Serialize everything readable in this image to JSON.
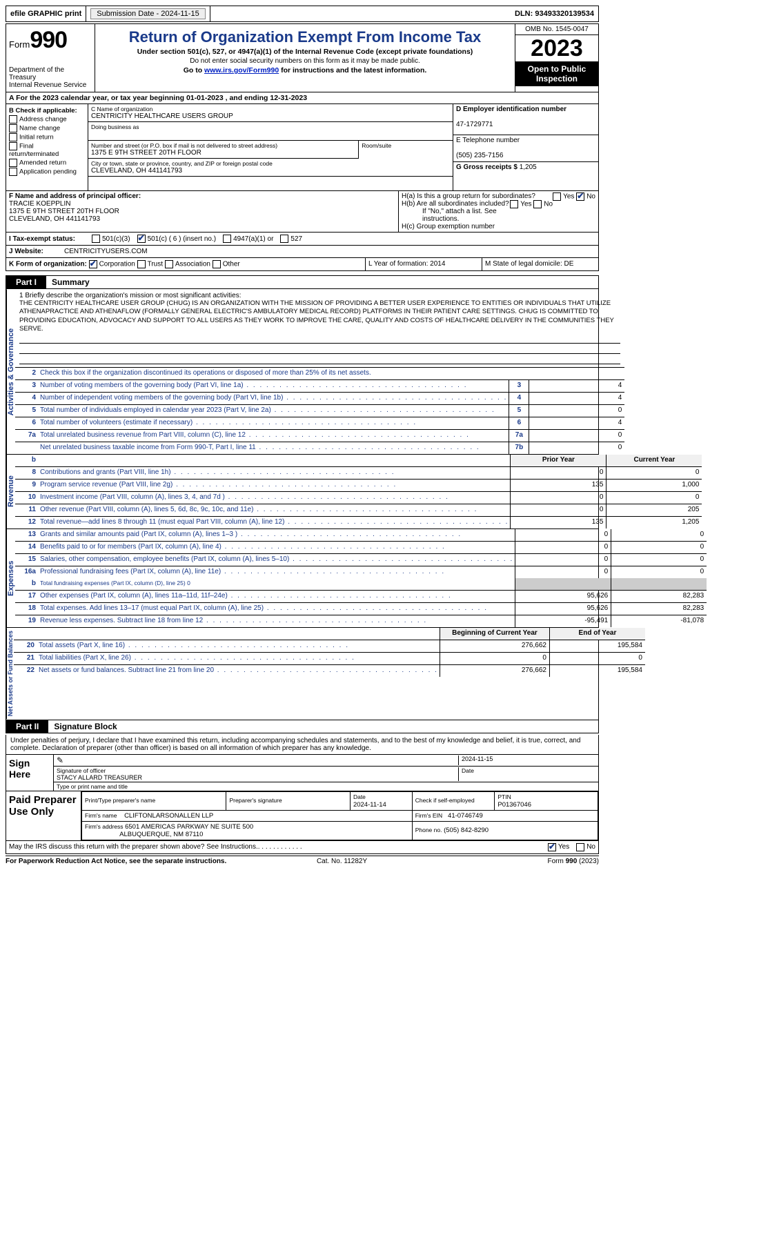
{
  "topbar": {
    "efile": "efile GRAPHIC print",
    "submission_label": "Submission Date - ",
    "submission_date": "2024-11-15",
    "dln_label": "DLN: ",
    "dln": "93493320139534"
  },
  "header": {
    "form_word": "Form",
    "form_num": "990",
    "dept1": "Department of the Treasury",
    "dept2": "Internal Revenue Service",
    "title": "Return of Organization Exempt From Income Tax",
    "sub1": "Under section 501(c), 527, or 4947(a)(1) of the Internal Revenue Code (except private foundations)",
    "sub2": "Do not enter social security numbers on this form as it may be made public.",
    "sub3_pre": "Go to ",
    "sub3_link": "www.irs.gov/Form990",
    "sub3_post": " for instructions and the latest information.",
    "omb": "OMB No. 1545-0047",
    "year": "2023",
    "inspect1": "Open to Public",
    "inspect2": "Inspection"
  },
  "rowA": {
    "pre": "A For the 2023 calendar year, or tax year beginning ",
    "begin": "01-01-2023",
    "mid": " , and ending ",
    "end": "12-31-2023"
  },
  "colB": {
    "header": "B Check if applicable:",
    "items": [
      "Address change",
      "Name change",
      "Initial return",
      "Final return/terminated",
      "Amended return",
      "Application pending"
    ]
  },
  "colC": {
    "name_lbl": "C Name of organization",
    "name": "CENTRICITY HEALTHCARE USERS GROUP",
    "dba_lbl": "Doing business as",
    "dba": "",
    "street_lbl": "Number and street (or P.O. box if mail is not delivered to street address)",
    "street": "1375 E 9TH STREET 20TH FLOOR",
    "room_lbl": "Room/suite",
    "city_lbl": "City or town, state or province, country, and ZIP or foreign postal code",
    "city": "CLEVELAND, OH  441141793"
  },
  "colD": {
    "ein_lbl": "D Employer identification number",
    "ein": "47-1729771",
    "phone_lbl": "E Telephone number",
    "phone": "(505) 235-7156",
    "gross_lbl": "G Gross receipts $ ",
    "gross": "1,205"
  },
  "rowF": {
    "lbl": "F Name and address of principal officer:",
    "name": "TRACIE KOEPPLIN",
    "street": "1375 E 9TH STREET 20TH FLOOR",
    "city": "CLEVELAND, OH  441141793"
  },
  "rowH": {
    "ha": "H(a)  Is this a group return for subordinates?",
    "hb": "H(b)  Are all subordinates included?",
    "hb_note": "If \"No,\" attach a list. See instructions.",
    "hc": "H(c)  Group exemption number ",
    "yes": "Yes",
    "no": "No"
  },
  "rowI": {
    "lbl": "I  Tax-exempt status:",
    "c3": "501(c)(3)",
    "c": "501(c) ( 6 ) (insert no.)",
    "a1": "4947(a)(1) or",
    "s527": "527"
  },
  "rowJ": {
    "lbl": "J  Website:",
    "val": "CENTRICITYUSERS.COM"
  },
  "rowK": {
    "lbl": "K Form of organization:",
    "opts": [
      "Corporation",
      "Trust",
      "Association",
      "Other"
    ],
    "l": "L Year of formation: 2014",
    "m": "M State of legal domicile: DE"
  },
  "parts": {
    "p1": "Part I",
    "p1t": "Summary",
    "p2": "Part II",
    "p2t": "Signature Block"
  },
  "vlabels": {
    "ag": "Activities & Governance",
    "rev": "Revenue",
    "exp": "Expenses",
    "na": "Net Assets or Fund Balances"
  },
  "mission": {
    "lbl": "1   Briefly describe the organization's mission or most significant activities:",
    "txt": "THE CENTRICITY HEALTHCARE USER GROUP (CHUG) IS AN ORGANIZATION WITH THE MISSION OF PROVIDING A BETTER USER EXPERIENCE TO ENTITIES OR INDIVIDUALS THAT UTILIZE ATHENAPRACTICE AND ATHENAFLOW (FORMALLY GENERAL ELECTRIC'S AMBULATORY MEDICAL RECORD) PLATFORMS IN THEIR PATIENT CARE SETTINGS. CHUG IS COMMITTED TO PROVIDING EDUCATION, ADVOCACY AND SUPPORT TO ALL USERS AS THEY WORK TO IMPROVE THE CARE, QUALITY AND COSTS OF HEALTHCARE DELIVERY IN THE COMMUNITIES THEY SERVE."
  },
  "line2": "Check this box      if the organization discontinued its operations or disposed of more than 25% of its net assets.",
  "govlines": [
    {
      "n": "3",
      "t": "Number of voting members of the governing body (Part VI, line 1a)",
      "b": "3",
      "v": "4"
    },
    {
      "n": "4",
      "t": "Number of independent voting members of the governing body (Part VI, line 1b)",
      "b": "4",
      "v": "4"
    },
    {
      "n": "5",
      "t": "Total number of individuals employed in calendar year 2023 (Part V, line 2a)",
      "b": "5",
      "v": "0"
    },
    {
      "n": "6",
      "t": "Total number of volunteers (estimate if necessary)",
      "b": "6",
      "v": "4"
    },
    {
      "n": "7a",
      "t": "Total unrelated business revenue from Part VIII, column (C), line 12",
      "b": "7a",
      "v": "0"
    },
    {
      "n": "",
      "t": "Net unrelated business taxable income from Form 990-T, Part I, line 11",
      "b": "7b",
      "v": "0"
    }
  ],
  "colheads": {
    "b": "b",
    "py": "Prior Year",
    "cy": "Current Year",
    "bcy": "Beginning of Current Year",
    "eoy": "End of Year"
  },
  "revlines": [
    {
      "n": "8",
      "t": "Contributions and grants (Part VIII, line 1h)",
      "p": "0",
      "c": "0"
    },
    {
      "n": "9",
      "t": "Program service revenue (Part VIII, line 2g)",
      "p": "135",
      "c": "1,000"
    },
    {
      "n": "10",
      "t": "Investment income (Part VIII, column (A), lines 3, 4, and 7d )",
      "p": "0",
      "c": "0"
    },
    {
      "n": "11",
      "t": "Other revenue (Part VIII, column (A), lines 5, 6d, 8c, 9c, 10c, and 11e)",
      "p": "0",
      "c": "205"
    },
    {
      "n": "12",
      "t": "Total revenue—add lines 8 through 11 (must equal Part VIII, column (A), line 12)",
      "p": "135",
      "c": "1,205"
    }
  ],
  "explines": [
    {
      "n": "13",
      "t": "Grants and similar amounts paid (Part IX, column (A), lines 1–3 )",
      "p": "0",
      "c": "0"
    },
    {
      "n": "14",
      "t": "Benefits paid to or for members (Part IX, column (A), line 4)",
      "p": "0",
      "c": "0"
    },
    {
      "n": "15",
      "t": "Salaries, other compensation, employee benefits (Part IX, column (A), lines 5–10)",
      "p": "0",
      "c": "0"
    },
    {
      "n": "16a",
      "t": "Professional fundraising fees (Part IX, column (A), line 11e)",
      "p": "0",
      "c": "0"
    }
  ],
  "line16b": {
    "n": "b",
    "t": "Total fundraising expenses (Part IX, column (D), line 25)  0"
  },
  "explines2": [
    {
      "n": "17",
      "t": "Other expenses (Part IX, column (A), lines 11a–11d, 11f–24e)",
      "p": "95,626",
      "c": "82,283"
    },
    {
      "n": "18",
      "t": "Total expenses. Add lines 13–17 (must equal Part IX, column (A), line 25)",
      "p": "95,626",
      "c": "82,283"
    },
    {
      "n": "19",
      "t": "Revenue less expenses. Subtract line 18 from line 12",
      "p": "-95,491",
      "c": "-81,078"
    }
  ],
  "nalines": [
    {
      "n": "20",
      "t": "Total assets (Part X, line 16)",
      "p": "276,662",
      "c": "195,584"
    },
    {
      "n": "21",
      "t": "Total liabilities (Part X, line 26)",
      "p": "0",
      "c": "0"
    },
    {
      "n": "22",
      "t": "Net assets or fund balances. Subtract line 21 from line 20",
      "p": "276,662",
      "c": "195,584"
    }
  ],
  "sig": {
    "intro": "Under penalties of perjury, I declare that I have examined this return, including accompanying schedules and statements, and to the best of my knowledge and belief, it is true, correct, and complete. Declaration of preparer (other than officer) is based on all information of which preparer has any knowledge.",
    "sign_here": "Sign Here",
    "sig_officer_lbl": "Signature of officer",
    "officer": "STACY ALLARD  TREASURER",
    "name_title_lbl": "Type or print name and title",
    "date_lbl": "Date",
    "sig_date": "2024-11-15"
  },
  "prep": {
    "title": "Paid Preparer Use Only",
    "print_lbl": "Print/Type preparer's name",
    "prepsig_lbl": "Preparer's signature",
    "date": "2024-11-14",
    "check_lbl": "Check         if self-employed",
    "ptin_lbl": "PTIN",
    "ptin": "P01367046",
    "firm_name_lbl": "Firm's name",
    "firm_name": "CLIFTONLARSONALLEN LLP",
    "firm_ein_lbl": "Firm's EIN",
    "firm_ein": "41-0746749",
    "firm_addr_lbl": "Firm's address",
    "firm_addr1": "6501 AMERICAS PARKWAY NE SUITE 500",
    "firm_addr2": "ALBUQUERQUE, NM  87110",
    "phone_lbl": "Phone no.",
    "phone": "(505) 842-8290"
  },
  "discuss": {
    "q": "May the IRS discuss this return with the preparer shown above? See Instructions.",
    "yes": "Yes",
    "no": "No"
  },
  "footer": {
    "l": "For Paperwork Reduction Act Notice, see the separate instructions.",
    "m": "Cat. No. 11282Y",
    "r": "Form 990 (2023)"
  },
  "style": {
    "link_color": "#0020c2",
    "accent_color": "#1a3a8a",
    "grey": "#cccccc"
  }
}
